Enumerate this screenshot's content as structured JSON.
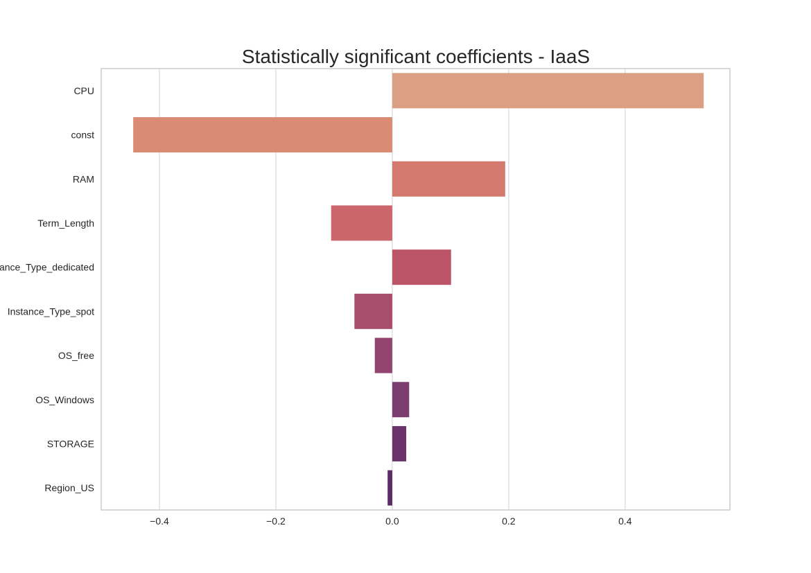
{
  "chart_data": {
    "type": "bar",
    "orientation": "horizontal",
    "title": "Statistically significant coefficients - IaaS",
    "xlabel": "",
    "ylabel": "",
    "categories": [
      "CPU",
      "const",
      "RAM",
      "Term_Length",
      "Instance_Type_dedicated",
      "Instance_Type_spot",
      "OS_free",
      "OS_Windows",
      "STORAGE",
      "Region_US"
    ],
    "values": [
      0.535,
      -0.445,
      0.194,
      -0.105,
      0.101,
      -0.065,
      -0.03,
      0.029,
      0.024,
      -0.008
    ],
    "colors": [
      "#dba083",
      "#da8b74",
      "#d4796d",
      "#ca666c",
      "#bd5569",
      "#a94d6d",
      "#91456f",
      "#7c3d71",
      "#69346a",
      "#5a2d67"
    ],
    "xlim": [
      -0.5,
      0.58
    ],
    "xticks": [
      -0.4,
      -0.2,
      0.0,
      0.2,
      0.4
    ],
    "xtick_labels": [
      "−0.4",
      "−0.2",
      "0.0",
      "0.2",
      "0.4"
    ],
    "grid": "vertical",
    "legend": "none"
  }
}
